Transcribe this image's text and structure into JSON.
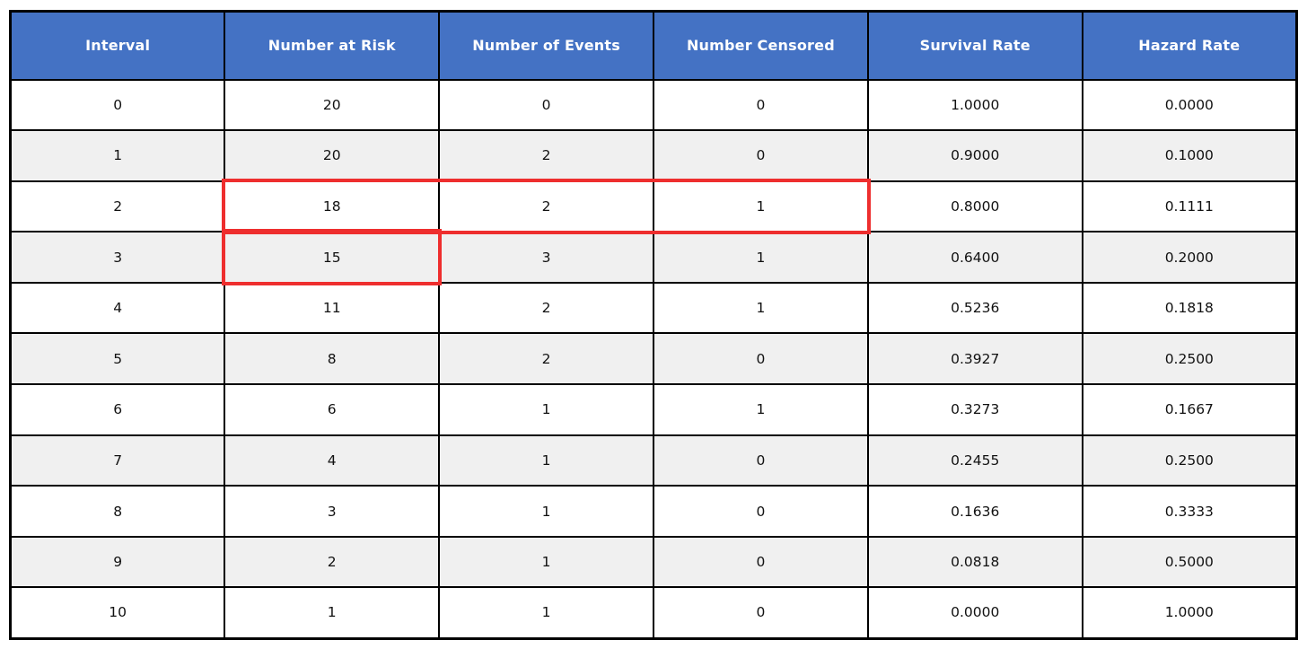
{
  "colors": {
    "header_bg": "#4472C4",
    "header_text": "#FFFFFF",
    "row_alt_bg": "#F0F0F0",
    "grid": "#000000",
    "highlight_border": "#EE2E2E"
  },
  "chart_data": {
    "type": "table",
    "title": "",
    "columns": [
      "Interval",
      "Number at Risk",
      "Number of Events",
      "Number Censored",
      "Survival Rate",
      "Hazard Rate"
    ],
    "rows": [
      [
        "0",
        "20",
        "0",
        "0",
        "1.0000",
        "0.0000"
      ],
      [
        "1",
        "20",
        "2",
        "0",
        "0.9000",
        "0.1000"
      ],
      [
        "2",
        "18",
        "2",
        "1",
        "0.8000",
        "0.1111"
      ],
      [
        "3",
        "15",
        "3",
        "1",
        "0.6400",
        "0.2000"
      ],
      [
        "4",
        "11",
        "2",
        "1",
        "0.5236",
        "0.1818"
      ],
      [
        "5",
        "8",
        "2",
        "0",
        "0.3927",
        "0.2500"
      ],
      [
        "6",
        "6",
        "1",
        "1",
        "0.3273",
        "0.1667"
      ],
      [
        "7",
        "4",
        "1",
        "0",
        "0.2455",
        "0.2500"
      ],
      [
        "8",
        "3",
        "1",
        "0",
        "0.1636",
        "0.3333"
      ],
      [
        "9",
        "2",
        "1",
        "0",
        "0.0818",
        "0.5000"
      ],
      [
        "10",
        "1",
        "1",
        "0",
        "0.0000",
        "1.0000"
      ]
    ],
    "highlights": [
      {
        "row": 2,
        "col_start": 1,
        "col_end": 3,
        "note": "red outline spanning Number at Risk, Number of Events, Number Censored for interval 2"
      },
      {
        "row": 3,
        "col_start": 1,
        "col_end": 1,
        "note": "red outline around Number at Risk for interval 3"
      }
    ],
    "layout_hints": {
      "zebra_striping": true,
      "header_style": "blue-filled bold white text",
      "grid": "black solid lines"
    }
  }
}
